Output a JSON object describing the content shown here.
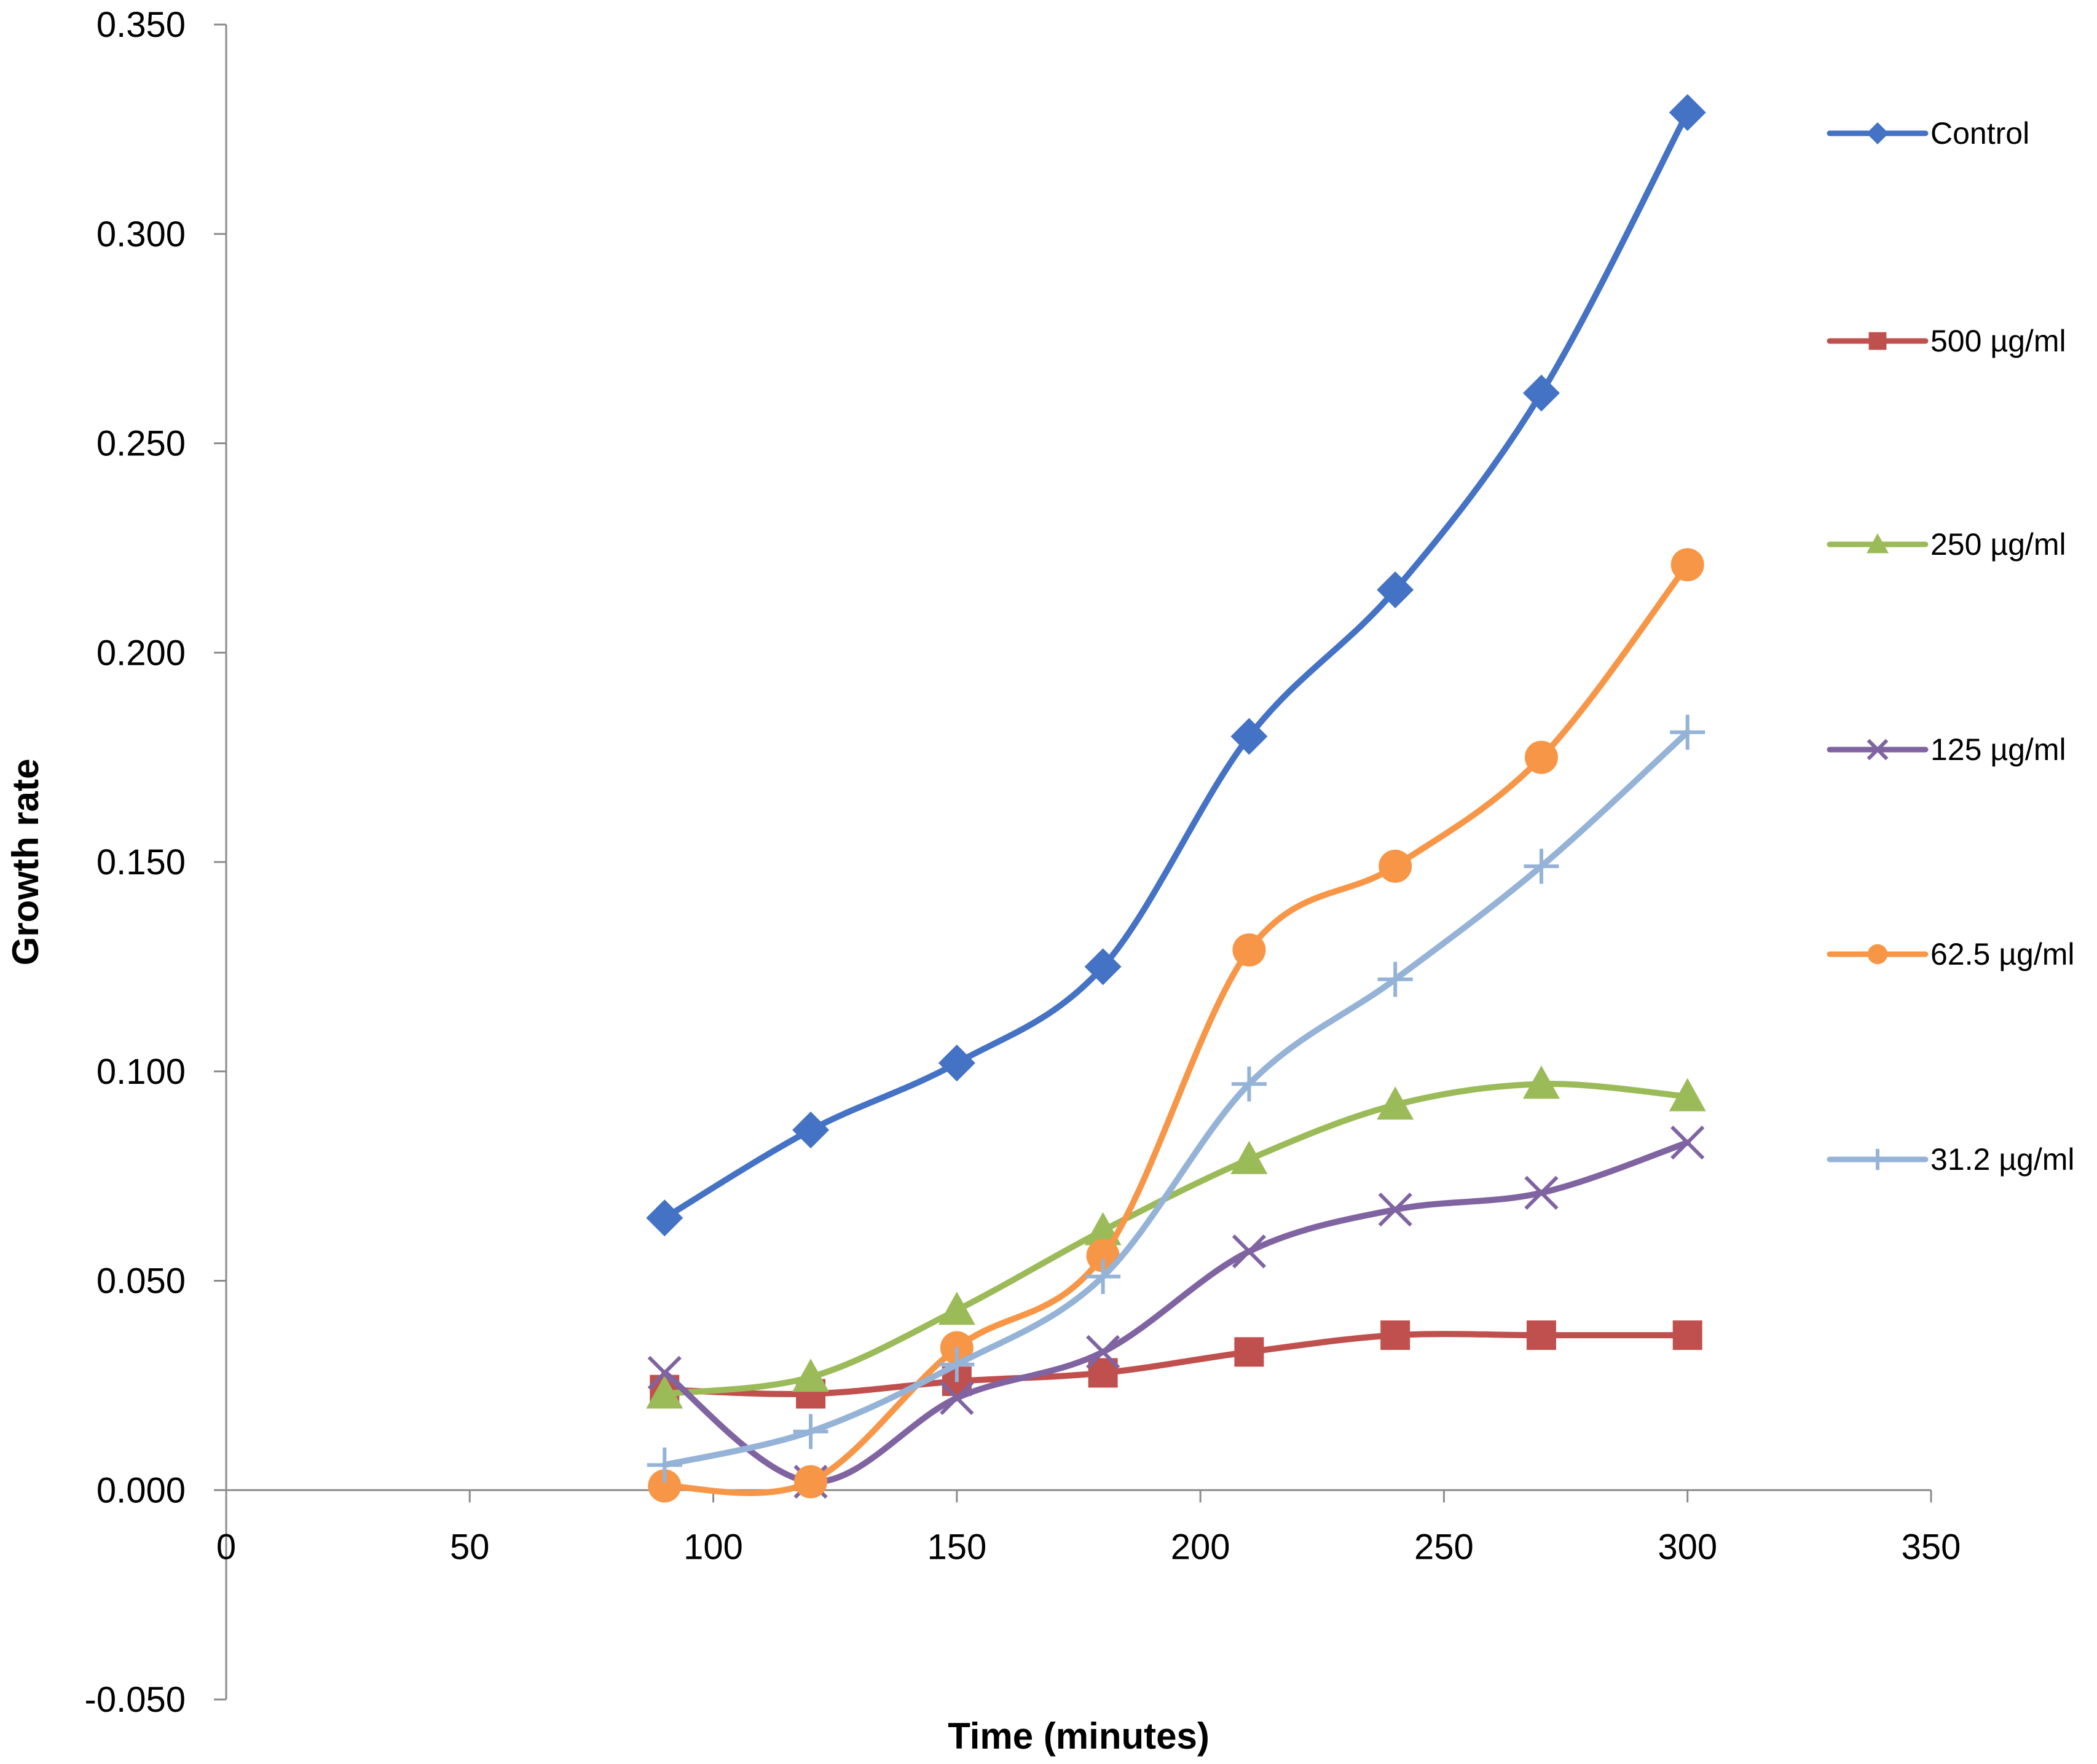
{
  "chart_data": {
    "type": "line",
    "smooth": true,
    "title": "",
    "xlabel": "Time (minutes)",
    "ylabel": "Growth rate",
    "xlim": [
      0,
      350
    ],
    "ylim": [
      -0.05,
      0.35
    ],
    "grid": false,
    "legend_position": "right",
    "x_ticks": [
      "0",
      "50",
      "100",
      "150",
      "200",
      "250",
      "300",
      "350"
    ],
    "y_ticks": [
      "-0.050",
      "0.000",
      "0.050",
      "0.100",
      "0.150",
      "0.200",
      "0.250",
      "0.300",
      "0.350"
    ],
    "x": [
      90,
      120,
      150,
      180,
      210,
      240,
      270,
      300
    ],
    "series": [
      {
        "name": "Control",
        "color": "#4472C4",
        "marker": "diamond",
        "values": [
          0.065,
          0.086,
          0.102,
          0.125,
          0.18,
          0.215,
          0.262,
          0.329
        ]
      },
      {
        "name": "500 µg/ml",
        "color": "#C0504D",
        "marker": "square",
        "values": [
          0.024,
          0.023,
          0.026,
          0.028,
          0.033,
          0.037,
          0.037,
          0.037
        ]
      },
      {
        "name": "250 µg/ml",
        "color": "#9BBB59",
        "marker": "triangle",
        "values": [
          0.023,
          0.027,
          0.043,
          0.062,
          0.079,
          0.092,
          0.097,
          0.094
        ]
      },
      {
        "name": "125 µg/ml",
        "color": "#8064A2",
        "marker": "x",
        "values": [
          0.028,
          0.002,
          0.022,
          0.033,
          0.057,
          0.067,
          0.071,
          0.083
        ]
      },
      {
        "name": "62.5 µg/ml",
        "color": "#F79646",
        "marker": "circle",
        "values": [
          0.001,
          0.002,
          0.034,
          0.056,
          0.129,
          0.149,
          0.175,
          0.221
        ]
      },
      {
        "name": "31.2 µg/ml",
        "color": "#95B3D7",
        "marker": "plus",
        "values": [
          0.006,
          0.014,
          0.03,
          0.051,
          0.097,
          0.122,
          0.149,
          0.181
        ]
      }
    ]
  }
}
